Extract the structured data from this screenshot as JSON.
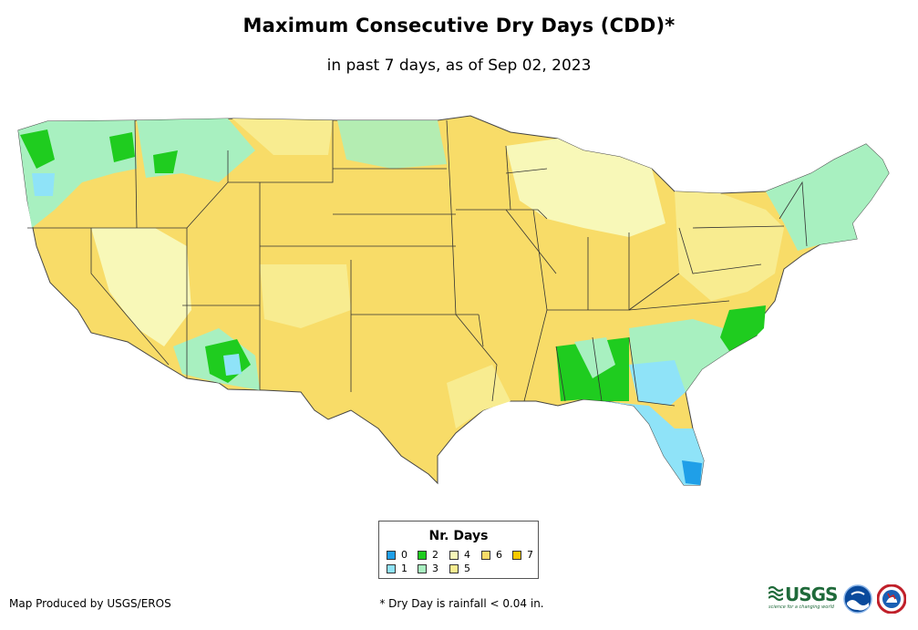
{
  "title": "Maximum Consecutive Dry Days (CDD)*",
  "subtitle": "in past 7 days, as of Sep 02, 2023",
  "legend": {
    "title": "Nr. Days",
    "items": [
      {
        "label": "0",
        "color": "#1f9fe8"
      },
      {
        "label": "1",
        "color": "#8fe3f8"
      },
      {
        "label": "2",
        "color": "#1fcc1f"
      },
      {
        "label": "3",
        "color": "#a8f0c0"
      },
      {
        "label": "4",
        "color": "#f8f8b8"
      },
      {
        "label": "5",
        "color": "#f8ec90"
      },
      {
        "label": "6",
        "color": "#f8dc68"
      },
      {
        "label": "7",
        "color": "#f8c800"
      }
    ]
  },
  "footer": {
    "producer": "Map Produced by USGS/EROS",
    "footnote": "* Dry Day is rainfall < 0.04 in."
  },
  "logos": {
    "usgs": "USGS",
    "usgs_tagline": "science for a changing world",
    "noaa": "noaa",
    "nws": "NATIONAL WEATHER SERVICE"
  },
  "regions": [
    {
      "name": "mainland",
      "days": 6
    },
    {
      "name": "pacific-northwest",
      "days": 3
    },
    {
      "name": "northern-rockies",
      "days": 3
    },
    {
      "name": "great-basin",
      "days": 4
    },
    {
      "name": "desert-southwest",
      "days": 4
    },
    {
      "name": "southeast-coast",
      "days": 3
    },
    {
      "name": "new-england",
      "days": 3
    },
    {
      "name": "great-lakes",
      "days": 5
    },
    {
      "name": "mid-atlantic",
      "days": 4
    },
    {
      "name": "florida",
      "days": 1
    },
    {
      "name": "gulf-coast",
      "days": 2
    },
    {
      "name": "north-carolina",
      "days": 2
    },
    {
      "name": "olympic-peninsula",
      "days": 2
    },
    {
      "name": "idaho-montana-patches",
      "days": 2
    },
    {
      "name": "arizona-monsoon",
      "days": 2
    },
    {
      "name": "south-florida",
      "days": 0
    }
  ]
}
